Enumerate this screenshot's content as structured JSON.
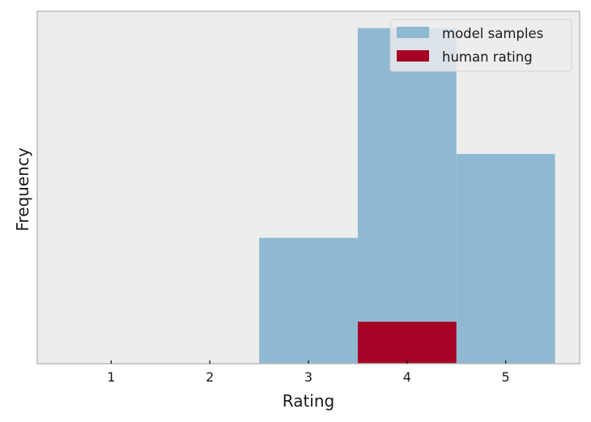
{
  "chart_data": {
    "type": "bar",
    "xlabel": "Rating",
    "ylabel": "Frequency",
    "categories": [
      "1",
      "2",
      "3",
      "4",
      "5"
    ],
    "x": [
      1,
      2,
      3,
      4,
      5
    ],
    "xlim": [
      0.25,
      5.75
    ],
    "ylim": [
      0,
      4.2
    ],
    "y_tick_labels_shown": false,
    "grid": false,
    "legend_position": "top-right",
    "series": [
      {
        "name": "model samples",
        "values": [
          0,
          0,
          1.5,
          4,
          2.5
        ],
        "color": "#8fb9d3"
      },
      {
        "name": "human rating",
        "values": [
          0,
          0,
          0,
          0.5,
          0
        ],
        "color": "#a50326"
      }
    ],
    "background_color": "#ededed",
    "frame_color": "#bcbcbc"
  }
}
